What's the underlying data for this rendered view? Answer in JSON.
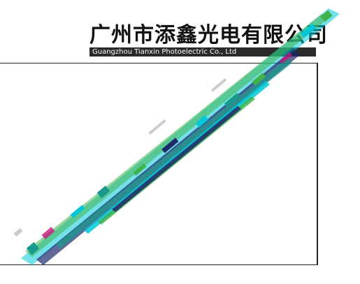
{
  "header": {
    "company_name_cn": "广州市添鑫光电有限公司",
    "company_name_en": "Guangzhou Tianxin Photoelectric Co., Ltd"
  },
  "colors": {
    "header_text": "#111111",
    "header_bar": "#2a2a2a",
    "frame": "#222222",
    "cyan": "#00c8d8",
    "teal": "#1a9a8a",
    "green": "#3fb34a",
    "navy": "#1d2a6b",
    "magenta": "#c2187a"
  }
}
